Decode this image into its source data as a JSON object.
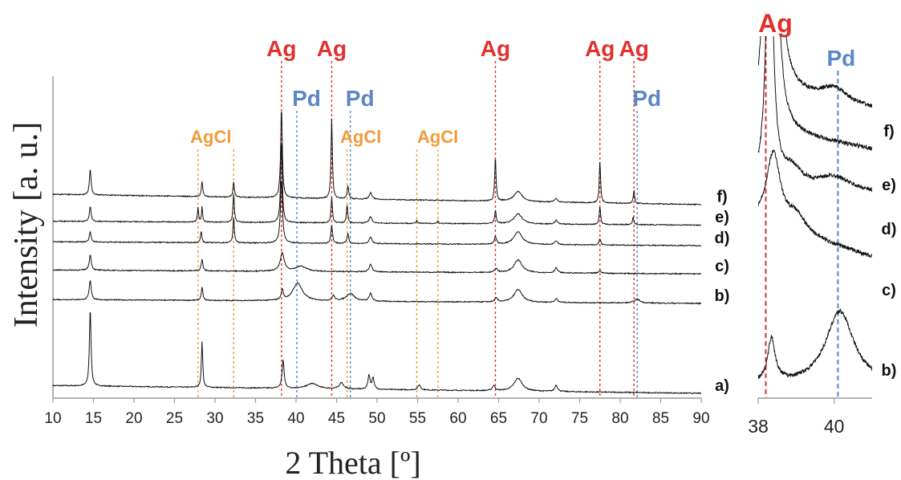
{
  "chart_data": [
    {
      "type": "line",
      "xlabel": "2 Theta [º]",
      "ylabel": "Intensity [a. u.]",
      "xlim": [
        10,
        90
      ],
      "xticks": [
        10,
        15,
        20,
        25,
        30,
        35,
        40,
        45,
        50,
        55,
        60,
        65,
        70,
        75,
        80,
        85,
        90
      ],
      "grid": false,
      "units_y": "arbitrary, traces vertically offset",
      "colors": {
        "Ag": "#e0312f",
        "Pd": "#5b87c5",
        "AgCl": "#f29a3a",
        "trace": "#111111"
      },
      "reference_lines": [
        {
          "label": "Ag",
          "x": 38.2,
          "color": "#e0312f"
        },
        {
          "label": "Ag",
          "x": 44.4,
          "color": "#e0312f"
        },
        {
          "label": "Ag",
          "x": 64.6,
          "color": "#e0312f"
        },
        {
          "label": "Ag",
          "x": 77.5,
          "color": "#e0312f"
        },
        {
          "label": "Ag",
          "x": 81.7,
          "color": "#e0312f"
        },
        {
          "label": "Pd",
          "x": 40.1,
          "color": "#5b87c5"
        },
        {
          "label": "Pd",
          "x": 46.7,
          "color": "#5b87c5"
        },
        {
          "label": "Pd",
          "x": 82.1,
          "color": "#5b87c5"
        },
        {
          "label": "AgCl",
          "x": 27.9,
          "color": "#f29a3a"
        },
        {
          "label": "AgCl",
          "x": 32.3,
          "color": "#f29a3a"
        },
        {
          "label": "AgCl",
          "x": 46.3,
          "color": "#f29a3a"
        },
        {
          "label": "AgCl",
          "x": 54.9,
          "color": "#f29a3a"
        },
        {
          "label": "AgCl",
          "x": 57.5,
          "color": "#f29a3a"
        }
      ],
      "series": [
        {
          "name": "a)",
          "baseline": 0.0,
          "tilt": 0.06,
          "peaks": [
            [
              14.6,
              0.6,
              0.12
            ],
            [
              28.4,
              0.36,
              0.1
            ],
            [
              38.4,
              0.22,
              0.15
            ],
            [
              42.0,
              0.04,
              0.8
            ],
            [
              45.6,
              0.05,
              0.3
            ],
            [
              49.0,
              0.11,
              0.15
            ],
            [
              49.5,
              0.09,
              0.15
            ],
            [
              55.2,
              0.04,
              0.2
            ],
            [
              64.4,
              0.04,
              0.2
            ],
            [
              67.4,
              0.1,
              0.6
            ],
            [
              72.1,
              0.05,
              0.2
            ]
          ]
        },
        {
          "name": "b)",
          "baseline": 0.7,
          "tilt": 0.03,
          "peaks": [
            [
              14.6,
              0.15,
              0.15
            ],
            [
              28.4,
              0.1,
              0.12
            ],
            [
              38.3,
              0.08,
              0.15
            ],
            [
              40.2,
              0.14,
              0.7
            ],
            [
              44.6,
              0.04,
              0.2
            ],
            [
              46.7,
              0.06,
              0.6
            ],
            [
              49.2,
              0.06,
              0.2
            ],
            [
              64.7,
              0.03,
              0.2
            ],
            [
              67.4,
              0.1,
              0.6
            ],
            [
              72.1,
              0.03,
              0.2
            ],
            [
              82.1,
              0.03,
              0.4
            ]
          ]
        },
        {
          "name": "c)",
          "baseline": 0.93,
          "tilt": 0.03,
          "peaks": [
            [
              14.6,
              0.12,
              0.15
            ],
            [
              28.4,
              0.09,
              0.12
            ],
            [
              38.3,
              0.14,
              0.3
            ],
            [
              40.6,
              0.04,
              0.8
            ],
            [
              49.2,
              0.06,
              0.2
            ],
            [
              64.7,
              0.03,
              0.2
            ],
            [
              67.4,
              0.1,
              0.6
            ],
            [
              72.1,
              0.04,
              0.2
            ],
            [
              77.5,
              0.02,
              0.2
            ]
          ]
        },
        {
          "name": "d)",
          "baseline": 1.15,
          "tilt": 0.03,
          "peaks": [
            [
              14.6,
              0.08,
              0.12
            ],
            [
              28.3,
              0.09,
              0.1
            ],
            [
              32.3,
              0.2,
              0.1
            ],
            [
              38.2,
              0.5,
              0.15
            ],
            [
              44.4,
              0.14,
              0.12
            ],
            [
              46.4,
              0.08,
              0.12
            ],
            [
              49.2,
              0.05,
              0.2
            ],
            [
              64.6,
              0.06,
              0.15
            ],
            [
              67.4,
              0.1,
              0.6
            ],
            [
              72.1,
              0.03,
              0.2
            ],
            [
              77.5,
              0.05,
              0.12
            ]
          ]
        },
        {
          "name": "e)",
          "baseline": 1.31,
          "tilt": 0.03,
          "peaks": [
            [
              14.6,
              0.12,
              0.12
            ],
            [
              27.9,
              0.12,
              0.08
            ],
            [
              28.4,
              0.12,
              0.08
            ],
            [
              32.3,
              0.22,
              0.1
            ],
            [
              38.2,
              0.64,
              0.12
            ],
            [
              44.4,
              0.2,
              0.1
            ],
            [
              46.3,
              0.14,
              0.1
            ],
            [
              49.2,
              0.05,
              0.2
            ],
            [
              54.9,
              0.02,
              0.1
            ],
            [
              57.5,
              0.02,
              0.1
            ],
            [
              64.6,
              0.1,
              0.12
            ],
            [
              67.4,
              0.08,
              0.6
            ],
            [
              72.1,
              0.03,
              0.2
            ],
            [
              77.5,
              0.14,
              0.1
            ],
            [
              81.6,
              0.06,
              0.1
            ]
          ]
        },
        {
          "name": "f)",
          "baseline": 1.47,
          "tilt": 0.08,
          "peaks": [
            [
              14.6,
              0.2,
              0.12
            ],
            [
              28.4,
              0.12,
              0.1
            ],
            [
              32.3,
              0.12,
              0.1
            ],
            [
              38.2,
              0.7,
              0.12
            ],
            [
              44.4,
              0.62,
              0.1
            ],
            [
              46.4,
              0.1,
              0.12
            ],
            [
              49.2,
              0.05,
              0.2
            ],
            [
              64.6,
              0.34,
              0.1
            ],
            [
              67.4,
              0.08,
              0.6
            ],
            [
              72.1,
              0.03,
              0.2
            ],
            [
              77.5,
              0.32,
              0.1
            ],
            [
              81.7,
              0.1,
              0.1
            ]
          ]
        }
      ]
    },
    {
      "type": "line",
      "xlabel": "",
      "ylabel": "",
      "xlim": [
        38,
        41
      ],
      "xticks": [
        38,
        40
      ],
      "xtick_labels": [
        "38",
        "40"
      ],
      "grid": false,
      "reference_lines": [
        {
          "label": "Ag",
          "x": 38.2,
          "color": "#e0312f"
        },
        {
          "label": "Pd",
          "x": 40.1,
          "color": "#5b87c5"
        }
      ],
      "series": [
        {
          "name": "f)",
          "baseline": 0.82,
          "tilt": 0.06,
          "peaks": [
            [
              38.3,
              0.9,
              0.12
            ],
            [
              38.5,
              0.5,
              0.12
            ],
            [
              40.0,
              0.04,
              0.4
            ]
          ]
        },
        {
          "name": "e)",
          "baseline": 0.7,
          "tilt": 0.06,
          "peaks": [
            [
              38.25,
              0.9,
              0.12
            ],
            [
              38.5,
              0.3,
              0.12
            ]
          ]
        },
        {
          "name": "d)",
          "baseline": 0.57,
          "tilt": 0.02,
          "peaks": [
            [
              38.3,
              0.9,
              0.1
            ],
            [
              38.9,
              0.05,
              0.3
            ],
            [
              40.0,
              0.04,
              0.5
            ]
          ]
        },
        {
          "name": "c)",
          "baseline": 0.38,
          "tilt": 0.1,
          "peaks": [
            [
              38.4,
              0.22,
              0.22
            ],
            [
              39.0,
              0.05,
              0.3
            ]
          ]
        },
        {
          "name": "b)",
          "baseline": 0.0,
          "tilt": 0.0,
          "peaks": [
            [
              38.35,
              0.13,
              0.12
            ],
            [
              40.15,
              0.22,
              0.45
            ]
          ]
        }
      ]
    }
  ]
}
